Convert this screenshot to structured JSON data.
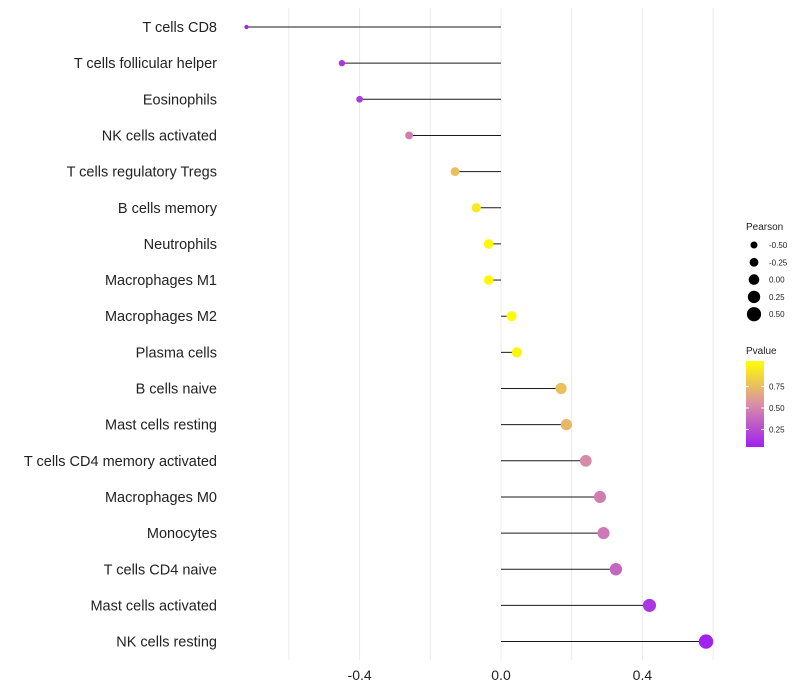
{
  "chart_data": {
    "type": "lollipop",
    "title": "",
    "xlabel": "",
    "ylabel": "",
    "xlim": [
      -0.72,
      0.72
    ],
    "x_ticks": [
      -0.4,
      0.0,
      0.4
    ],
    "x_tick_labels": [
      "-0.4",
      "0.0",
      "0.4"
    ],
    "grid": true,
    "categories": [
      "T cells CD8",
      "T cells follicular helper",
      "Eosinophils",
      "NK cells activated",
      "T cells regulatory  Tregs",
      "B cells memory",
      "Neutrophils",
      "Macrophages M1",
      "Macrophages M2",
      "Plasma cells",
      "B cells naive",
      "Mast cells resting",
      "T cells CD4 memory activated",
      "Macrophages M0",
      "Monocytes",
      "T cells CD4 naive",
      "Mast cells activated",
      "NK cells resting"
    ],
    "pearson": [
      -0.72,
      -0.45,
      -0.4,
      -0.26,
      -0.13,
      -0.07,
      -0.035,
      -0.035,
      0.03,
      0.045,
      0.17,
      0.185,
      0.24,
      0.28,
      0.29,
      0.325,
      0.42,
      0.58
    ],
    "pvalue": [
      0.02,
      0.1,
      0.12,
      0.42,
      0.72,
      0.9,
      0.97,
      0.97,
      0.98,
      0.96,
      0.72,
      0.68,
      0.48,
      0.42,
      0.4,
      0.32,
      0.1,
      0.01
    ],
    "legend_size": {
      "title": "Pearson",
      "values": [
        -0.5,
        -0.25,
        0.0,
        0.25,
        0.5
      ],
      "labels": [
        "-0.50",
        "-0.25",
        "0.00",
        "0.25",
        "0.50"
      ]
    },
    "legend_color": {
      "title": "Pvalue",
      "range": [
        0.0,
        1.0
      ],
      "ticks": [
        0.25,
        0.5,
        0.75
      ],
      "tick_labels": [
        "0.25",
        "0.50",
        "0.75"
      ],
      "low_color": "#a020f0",
      "mid_color": "#d98fa6",
      "high_color": "#ffff00"
    },
    "line_color": "#1a1a1a",
    "grid_color": "#ebebeb"
  }
}
